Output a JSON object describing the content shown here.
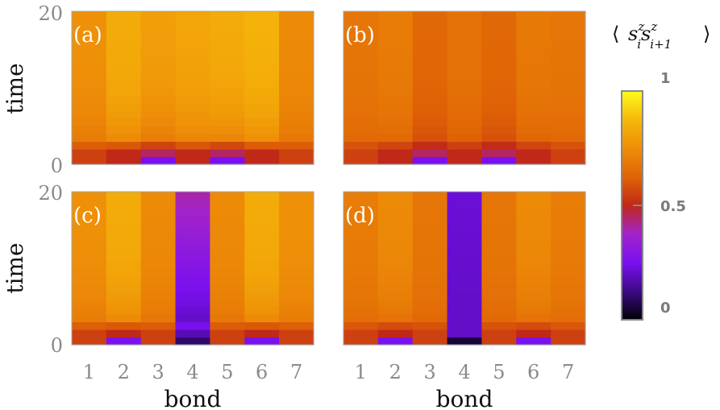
{
  "chart_data": {
    "type": "heatmap",
    "colormap": "plasma-like (black-purple-red-orange-yellow)",
    "colorbar": {
      "label": "⟨s_i^z s_{i+1}^z⟩",
      "range": [
        0,
        1
      ],
      "ticks": [
        {
          "value": 1,
          "label": "1"
        },
        {
          "value": 0.5,
          "label": "0.5"
        },
        {
          "value": 0,
          "label": "0"
        }
      ]
    },
    "xlabel": "bond",
    "ylabel": "time",
    "x_ticks": [
      "1",
      "2",
      "3",
      "4",
      "5",
      "6",
      "7"
    ],
    "y_range": [
      0,
      20
    ],
    "y_tick_labels": [
      "0",
      "20"
    ],
    "time_steps": 20,
    "panels": [
      {
        "label": "(a)",
        "initial": [
          0.55,
          0.5,
          0.25,
          0.5,
          0.25,
          0.5,
          0.55
        ],
        "final": [
          0.76,
          0.84,
          0.8,
          0.82,
          0.84,
          0.86,
          0.74
        ],
        "low_rows": [
          0.55,
          0.5,
          0.45,
          0.5,
          0.45,
          0.5,
          0.55
        ]
      },
      {
        "label": "(b)",
        "initial": [
          0.55,
          0.5,
          0.25,
          0.5,
          0.25,
          0.5,
          0.55
        ],
        "final": [
          0.68,
          0.7,
          0.64,
          0.67,
          0.64,
          0.69,
          0.68
        ],
        "low_rows": [
          0.55,
          0.5,
          0.45,
          0.5,
          0.45,
          0.5,
          0.55
        ]
      },
      {
        "label": "(c)",
        "initial": [
          0.55,
          0.25,
          0.55,
          0.1,
          0.55,
          0.25,
          0.55
        ],
        "final": [
          0.76,
          0.84,
          0.74,
          0.4,
          0.74,
          0.84,
          0.76
        ],
        "low_rows": [
          0.55,
          0.5,
          0.55,
          0.18,
          0.55,
          0.5,
          0.55
        ]
      },
      {
        "label": "(d)",
        "initial": [
          0.55,
          0.25,
          0.55,
          0.05,
          0.55,
          0.25,
          0.55
        ],
        "final": [
          0.7,
          0.74,
          0.68,
          0.22,
          0.68,
          0.74,
          0.7
        ],
        "low_rows": [
          0.55,
          0.5,
          0.55,
          0.2,
          0.55,
          0.5,
          0.55
        ]
      }
    ]
  }
}
